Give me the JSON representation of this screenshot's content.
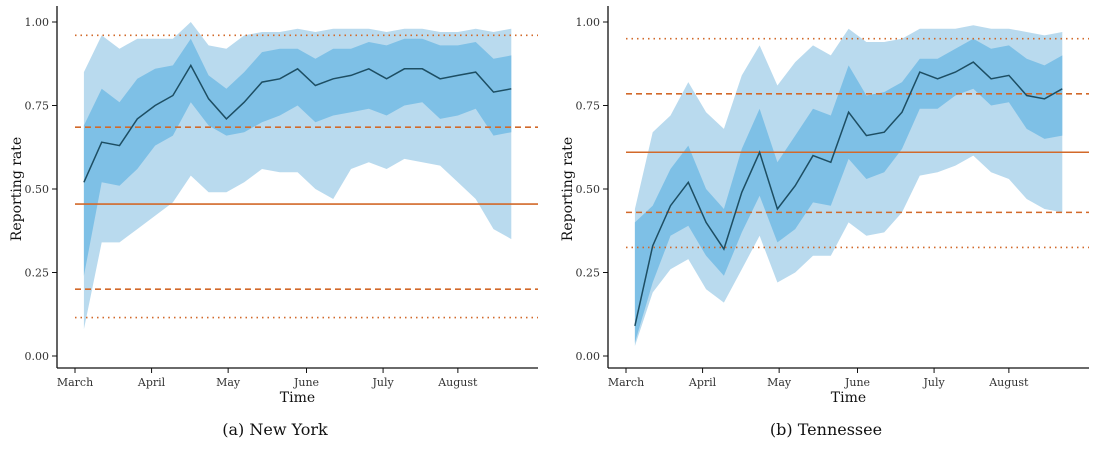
{
  "colors": {
    "band_outer": "#b9daee",
    "band_inner": "#7ec0e6",
    "median_line": "#1d4e63",
    "reference": "#d2692a",
    "axis": "#111111"
  },
  "chart_data": [
    {
      "type": "line",
      "caption": "(a) New York",
      "xlabel": "Time",
      "ylabel": "Reporting rate",
      "x_tick_labels": [
        "March",
        "April",
        "May",
        "June",
        "July",
        "August"
      ],
      "y_tick_labels": [
        "0.00",
        "0.25",
        "0.50",
        "0.75",
        "1.00"
      ],
      "y_ticks": [
        0,
        0.25,
        0.5,
        0.75,
        1.0
      ],
      "ylim": [
        0,
        1.02
      ],
      "grid": false,
      "x_weeks": [
        0.5,
        1.5,
        2.5,
        3.5,
        4.5,
        5.5,
        6.5,
        7.5,
        8.5,
        9.5,
        10.5,
        11.5,
        12.5,
        13.5,
        14.5,
        15.5,
        16.5,
        17.5,
        18.5,
        19.5,
        20.5,
        21.5,
        22.5,
        23.5,
        24.5
      ],
      "median": [
        0.52,
        0.64,
        0.63,
        0.71,
        0.75,
        0.78,
        0.87,
        0.77,
        0.71,
        0.76,
        0.82,
        0.83,
        0.86,
        0.81,
        0.83,
        0.84,
        0.86,
        0.83,
        0.86,
        0.86,
        0.83,
        0.84,
        0.85,
        0.79,
        0.8
      ],
      "inner_upper": [
        0.69,
        0.8,
        0.76,
        0.83,
        0.86,
        0.87,
        0.95,
        0.84,
        0.8,
        0.85,
        0.91,
        0.92,
        0.92,
        0.89,
        0.92,
        0.92,
        0.94,
        0.93,
        0.95,
        0.95,
        0.93,
        0.93,
        0.94,
        0.89,
        0.9
      ],
      "inner_lower": [
        0.24,
        0.52,
        0.51,
        0.56,
        0.63,
        0.66,
        0.76,
        0.69,
        0.66,
        0.67,
        0.7,
        0.72,
        0.75,
        0.7,
        0.72,
        0.73,
        0.74,
        0.72,
        0.75,
        0.76,
        0.71,
        0.72,
        0.74,
        0.66,
        0.67
      ],
      "outer_upper": [
        0.85,
        0.96,
        0.92,
        0.95,
        0.95,
        0.95,
        1.0,
        0.93,
        0.92,
        0.96,
        0.97,
        0.97,
        0.98,
        0.97,
        0.98,
        0.98,
        0.98,
        0.97,
        0.98,
        0.98,
        0.97,
        0.97,
        0.98,
        0.97,
        0.98
      ],
      "outer_lower": [
        0.08,
        0.34,
        0.34,
        0.38,
        0.42,
        0.46,
        0.54,
        0.49,
        0.49,
        0.52,
        0.56,
        0.55,
        0.55,
        0.5,
        0.47,
        0.56,
        0.58,
        0.56,
        0.59,
        0.58,
        0.57,
        0.52,
        0.47,
        0.38,
        0.35
      ],
      "reference": {
        "solid": 0.455,
        "dashed": [
          0.2,
          0.685
        ],
        "dotted": [
          0.115,
          0.96
        ]
      }
    },
    {
      "type": "line",
      "caption": "(b) Tennessee",
      "xlabel": "Time",
      "ylabel": "Reporting rate",
      "x_tick_labels": [
        "March",
        "April",
        "May",
        "June",
        "July",
        "August"
      ],
      "y_tick_labels": [
        "0.00",
        "0.25",
        "0.50",
        "0.75",
        "1.00"
      ],
      "y_ticks": [
        0,
        0.25,
        0.5,
        0.75,
        1.0
      ],
      "ylim": [
        0,
        1.02
      ],
      "grid": false,
      "x_weeks": [
        0.5,
        1.5,
        2.5,
        3.5,
        4.5,
        5.5,
        6.5,
        7.5,
        8.5,
        9.5,
        10.5,
        11.5,
        12.5,
        13.5,
        14.5,
        15.5,
        16.5,
        17.5,
        18.5,
        19.5,
        20.5,
        21.5,
        22.5,
        23.5,
        24.5
      ],
      "median": [
        0.09,
        0.33,
        0.45,
        0.52,
        0.4,
        0.32,
        0.49,
        0.61,
        0.44,
        0.51,
        0.6,
        0.58,
        0.73,
        0.66,
        0.67,
        0.73,
        0.85,
        0.83,
        0.85,
        0.88,
        0.83,
        0.84,
        0.78,
        0.77,
        0.8
      ],
      "inner_upper": [
        0.4,
        0.45,
        0.56,
        0.63,
        0.5,
        0.44,
        0.62,
        0.74,
        0.58,
        0.66,
        0.74,
        0.72,
        0.87,
        0.78,
        0.79,
        0.82,
        0.89,
        0.89,
        0.92,
        0.95,
        0.92,
        0.93,
        0.89,
        0.87,
        0.9
      ],
      "inner_lower": [
        0.04,
        0.22,
        0.36,
        0.39,
        0.3,
        0.24,
        0.37,
        0.48,
        0.34,
        0.38,
        0.46,
        0.45,
        0.59,
        0.53,
        0.55,
        0.62,
        0.74,
        0.74,
        0.78,
        0.8,
        0.75,
        0.76,
        0.68,
        0.65,
        0.66
      ],
      "outer_upper": [
        0.44,
        0.67,
        0.72,
        0.82,
        0.73,
        0.68,
        0.84,
        0.93,
        0.81,
        0.88,
        0.93,
        0.9,
        0.98,
        0.94,
        0.94,
        0.95,
        0.98,
        0.98,
        0.98,
        0.99,
        0.98,
        0.98,
        0.97,
        0.96,
        0.97
      ],
      "outer_lower": [
        0.03,
        0.19,
        0.26,
        0.29,
        0.2,
        0.16,
        0.26,
        0.36,
        0.22,
        0.25,
        0.3,
        0.3,
        0.4,
        0.36,
        0.37,
        0.43,
        0.54,
        0.55,
        0.57,
        0.6,
        0.55,
        0.53,
        0.47,
        0.44,
        0.43
      ],
      "reference": {
        "solid": 0.61,
        "dashed": [
          0.43,
          0.785
        ],
        "dotted": [
          0.325,
          0.95
        ]
      }
    }
  ]
}
